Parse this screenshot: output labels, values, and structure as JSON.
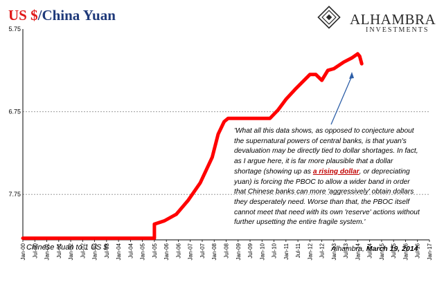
{
  "title": {
    "part1": "US $",
    "part2": "/China Yuan"
  },
  "logo": {
    "name": "ALHAMBRA",
    "sub": "INVESTMENTS"
  },
  "quote": {
    "before": "'What all this data shows, as opposed to conjecture about the supernatural powers of central banks, is that yuan's devaluation may be directly tied to dollar shortages. In fact, as I argue here, it is far more plausible that a dollar shortage (showing up as ",
    "highlight": "a rising dollar",
    "after": ", or depreciating yuan) is forcing the PBOC to allow a wider band in order that Chinese banks can more 'aggressively' obtain dollars they desperately need. Worse than that, the PBOC itself cannot meet that need with its own 'reserve' actions without further upsetting the entire fragile system.'"
  },
  "series_label": "Chinese Yuan to 1 US $",
  "source": {
    "author": "Alhambra, ",
    "date": "March 19, 2014"
  },
  "chart_data": {
    "type": "line",
    "title": "US $/China Yuan",
    "y_inverted": true,
    "ylim": [
      8.3,
      5.75
    ],
    "y_ticks": [
      "5.75",
      "6.75",
      "7.75"
    ],
    "x_tick_labels": [
      "Jan-00",
      "Jul-00",
      "Jan-01",
      "Jul-01",
      "Jan-02",
      "Jul-02",
      "Jan-03",
      "Jul-03",
      "Jan-04",
      "Jul-04",
      "Jan-05",
      "Jul-05",
      "Jan-06",
      "Jul-06",
      "Jan-07",
      "Jul-07",
      "Jan-08",
      "Jul-08",
      "Jan-09",
      "Jul-09",
      "Jan-10",
      "Jul-10",
      "Jan-11",
      "Jul-11",
      "Jan-12",
      "Jul-12",
      "Jan-13",
      "Jul-13",
      "Jan-14",
      "Jul-14",
      "Jan-15",
      "Jul-15",
      "Jan-16",
      "Jul-16",
      "Jan-17"
    ],
    "xlim": [
      "2000-01",
      "2017-01"
    ],
    "grid": true,
    "color": "#ff0000",
    "series": [
      {
        "name": "Chinese Yuan to 1 US $",
        "x": [
          "2000-01",
          "2005-07",
          "2005-07",
          "2005-12",
          "2006-06",
          "2006-12",
          "2007-06",
          "2007-12",
          "2008-03",
          "2008-06",
          "2008-08",
          "2009-06",
          "2010-05",
          "2010-09",
          "2011-01",
          "2011-06",
          "2012-01",
          "2012-04",
          "2012-07",
          "2012-10",
          "2013-01",
          "2013-06",
          "2013-10",
          "2014-01",
          "2014-02",
          "2014-03"
        ],
        "values": [
          8.28,
          8.28,
          8.11,
          8.07,
          7.99,
          7.82,
          7.61,
          7.3,
          7.02,
          6.87,
          6.83,
          6.83,
          6.83,
          6.73,
          6.6,
          6.47,
          6.3,
          6.3,
          6.37,
          6.25,
          6.23,
          6.15,
          6.1,
          6.05,
          6.08,
          6.17
        ]
      }
    ]
  }
}
